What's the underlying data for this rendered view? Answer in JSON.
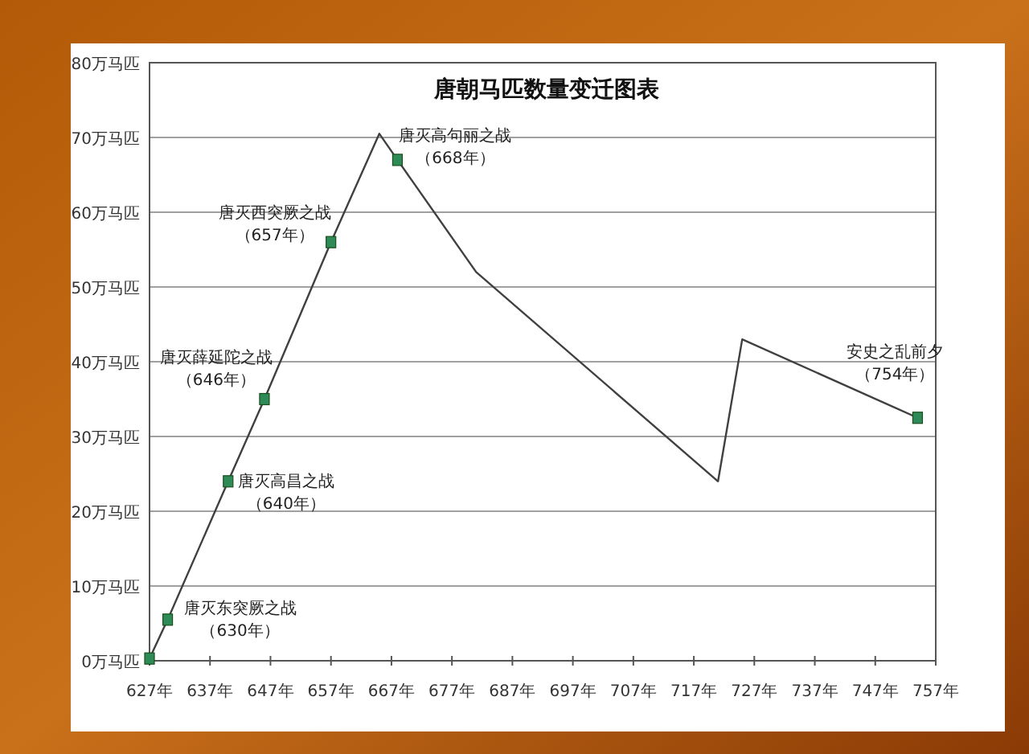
{
  "chart_data": {
    "type": "line",
    "title": "唐朝马匹数量变迁图表",
    "xlim": [
      627,
      757
    ],
    "xticks": [
      {
        "value": 627,
        "label": "627年"
      },
      {
        "value": 637,
        "label": "637年"
      },
      {
        "value": 647,
        "label": "647年"
      },
      {
        "value": 657,
        "label": "657年"
      },
      {
        "value": 667,
        "label": "667年"
      },
      {
        "value": 677,
        "label": "677年"
      },
      {
        "value": 687,
        "label": "687年"
      },
      {
        "value": 697,
        "label": "697年"
      },
      {
        "value": 707,
        "label": "707年"
      },
      {
        "value": 717,
        "label": "717年"
      },
      {
        "value": 727,
        "label": "727年"
      },
      {
        "value": 737,
        "label": "737年"
      },
      {
        "value": 747,
        "label": "747年"
      },
      {
        "value": 757,
        "label": "757年"
      }
    ],
    "ylim": [
      0,
      80
    ],
    "yticks": [
      {
        "value": 0,
        "label": "0万马匹"
      },
      {
        "value": 10,
        "label": "10万马匹"
      },
      {
        "value": 20,
        "label": "20万马匹"
      },
      {
        "value": 30,
        "label": "30万马匹"
      },
      {
        "value": 40,
        "label": "40万马匹"
      },
      {
        "value": 50,
        "label": "50万马匹"
      },
      {
        "value": 60,
        "label": "60万马匹"
      },
      {
        "value": 70,
        "label": "70万马匹"
      },
      {
        "value": 80,
        "label": "80万马匹"
      }
    ],
    "grid": "y",
    "series": [
      {
        "color": "#404040",
        "marker": "none",
        "line_style": "solid",
        "x": [
          627,
          630,
          640,
          646,
          657,
          665,
          668,
          681,
          721,
          725,
          754
        ],
        "values": [
          0.3,
          5.5,
          24,
          35,
          56,
          70.5,
          67,
          52,
          24,
          43,
          32.5
        ]
      },
      {
        "type": "scatter",
        "color": "#2e8b57",
        "marker": "square",
        "x": [
          627,
          630,
          640,
          646,
          657,
          668,
          754
        ],
        "values": [
          0.3,
          5.5,
          24,
          35,
          56,
          67,
          32.5
        ]
      }
    ],
    "annotations": [
      {
        "text": "唐灭东突厥之战（630年）",
        "x": 630,
        "y": 5.5
      },
      {
        "text": "唐灭高昌之战（640年）",
        "x": 640,
        "y": 24
      },
      {
        "text": "唐灭薛延陀之战（646年）",
        "x": 646,
        "y": 35
      },
      {
        "text": "唐灭西突厥之战（657年）",
        "x": 657,
        "y": 56
      },
      {
        "text": "唐灭高句丽之战（668年）",
        "x": 668,
        "y": 67
      },
      {
        "text": "安史之乱前夕（754年）",
        "x": 754,
        "y": 32.5
      }
    ]
  }
}
